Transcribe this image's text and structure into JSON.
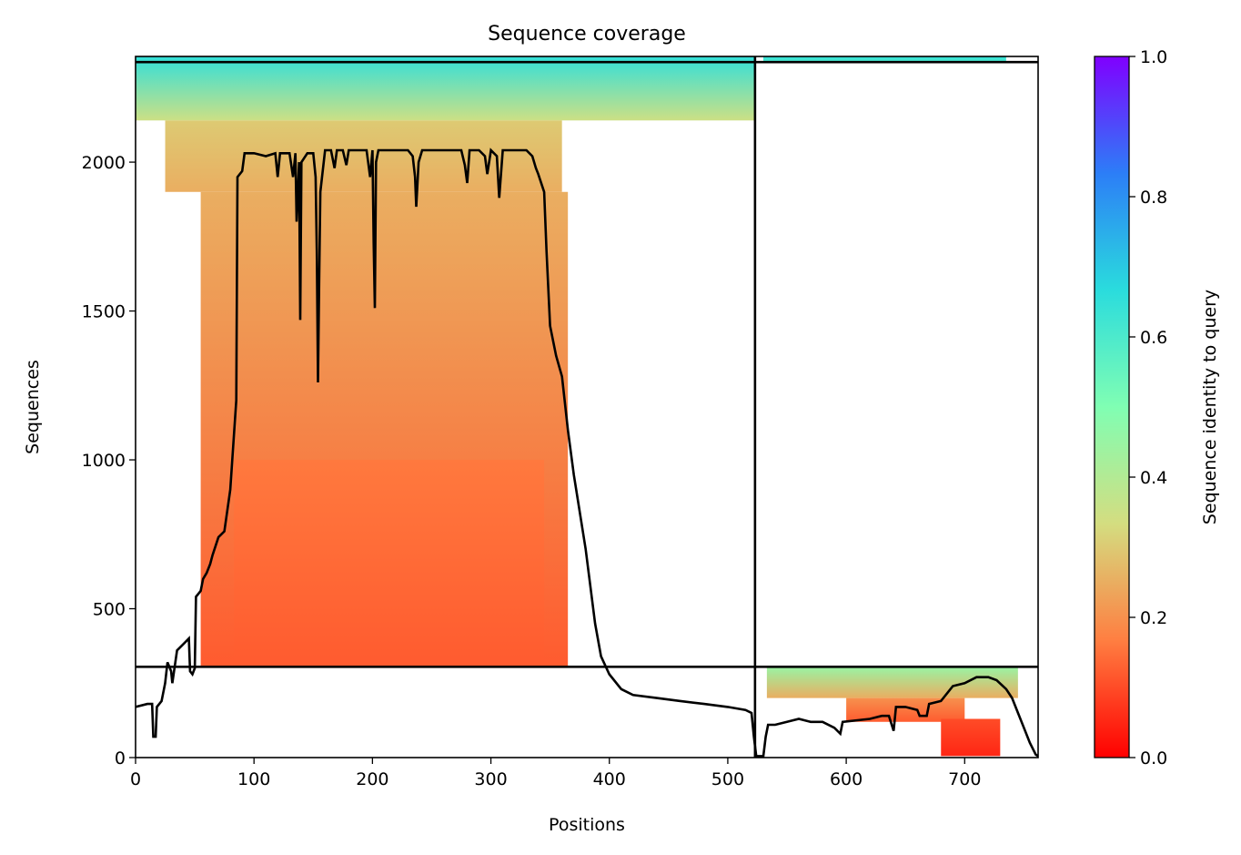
{
  "chart_data": {
    "type": "heatmap",
    "title": "Sequence coverage",
    "xlabel": "Positions",
    "ylabel": "Sequences",
    "xlim": [
      0,
      762
    ],
    "ylim": [
      0,
      2355
    ],
    "x_ticks": [
      0,
      100,
      200,
      300,
      400,
      500,
      600,
      700
    ],
    "y_ticks": [
      0,
      500,
      1000,
      1500,
      2000
    ],
    "grid": false,
    "colormap": "rainbow_r",
    "colorbar": {
      "label": "Sequence identity to query",
      "range": [
        0.0,
        1.0
      ],
      "ticks": [
        "0.0",
        "0.2",
        "0.4",
        "0.6",
        "0.8",
        "1.0"
      ],
      "colors": [
        "#ff0000",
        "#ff7e41",
        "#d4dd80",
        "#80feb3",
        "#2adcdd",
        "#2c7ef7",
        "#8000ff"
      ]
    },
    "chain_boundaries": {
      "vertical_at_position": 523,
      "horizontal_at_sequence": [
        305,
        2336
      ]
    },
    "coverage_blocks": [
      {
        "x0": 0,
        "x1": 523,
        "y0": 2140,
        "y1": 2355,
        "identity_bottom": 0.35,
        "identity_top": 0.65
      },
      {
        "x0": 25,
        "x1": 360,
        "y0": 1900,
        "y1": 2140,
        "identity_bottom": 0.25,
        "identity_top": 0.3
      },
      {
        "x0": 55,
        "x1": 365,
        "y0": 305,
        "y1": 1900,
        "identity_bottom": 0.12,
        "identity_top": 0.25
      },
      {
        "x0": 83,
        "x1": 345,
        "y0": 305,
        "y1": 1000,
        "identity_bottom": 0.12,
        "identity_top": 0.16
      },
      {
        "x0": 530,
        "x1": 735,
        "y0": 2336,
        "y1": 2355,
        "identity_bottom": 0.6,
        "identity_top": 0.65
      },
      {
        "x0": 533,
        "x1": 745,
        "y0": 200,
        "y1": 305,
        "identity_bottom": 0.25,
        "identity_top": 0.45
      },
      {
        "x0": 600,
        "x1": 700,
        "y0": 120,
        "y1": 200,
        "identity_bottom": 0.12,
        "identity_top": 0.2
      },
      {
        "x0": 680,
        "x1": 730,
        "y0": 5,
        "y1": 130,
        "identity_bottom": 0.05,
        "identity_top": 0.1
      }
    ],
    "series": [
      {
        "points": [
          [
            0,
            170
          ],
          [
            10,
            180
          ],
          [
            14,
            180
          ],
          [
            15,
            70
          ],
          [
            17,
            70
          ],
          [
            18,
            170
          ],
          [
            22,
            190
          ],
          [
            25,
            250
          ],
          [
            27,
            320
          ],
          [
            30,
            290
          ],
          [
            31,
            250
          ],
          [
            35,
            360
          ],
          [
            40,
            380
          ],
          [
            45,
            400
          ],
          [
            46,
            290
          ],
          [
            48,
            280
          ],
          [
            50,
            300
          ],
          [
            51,
            540
          ],
          [
            55,
            560
          ],
          [
            57,
            600
          ],
          [
            60,
            620
          ],
          [
            63,
            650
          ],
          [
            65,
            680
          ],
          [
            70,
            740
          ],
          [
            75,
            760
          ],
          [
            80,
            900
          ],
          [
            85,
            1200
          ],
          [
            86,
            1950
          ],
          [
            90,
            1970
          ],
          [
            92,
            2030
          ],
          [
            100,
            2030
          ],
          [
            110,
            2020
          ],
          [
            118,
            2030
          ],
          [
            120,
            1950
          ],
          [
            122,
            2030
          ],
          [
            130,
            2030
          ],
          [
            133,
            1950
          ],
          [
            135,
            2030
          ],
          [
            136,
            1800
          ],
          [
            138,
            2000
          ],
          [
            139,
            1470
          ],
          [
            140,
            2000
          ],
          [
            145,
            2030
          ],
          [
            150,
            2030
          ],
          [
            152,
            1950
          ],
          [
            153,
            1700
          ],
          [
            154,
            1260
          ],
          [
            155,
            1600
          ],
          [
            156,
            1900
          ],
          [
            160,
            2040
          ],
          [
            165,
            2040
          ],
          [
            168,
            1980
          ],
          [
            170,
            2040
          ],
          [
            175,
            2040
          ],
          [
            178,
            1990
          ],
          [
            180,
            2040
          ],
          [
            190,
            2040
          ],
          [
            195,
            2040
          ],
          [
            198,
            1950
          ],
          [
            200,
            2040
          ],
          [
            201,
            1730
          ],
          [
            202,
            1510
          ],
          [
            203,
            2000
          ],
          [
            205,
            2040
          ],
          [
            210,
            2040
          ],
          [
            220,
            2040
          ],
          [
            230,
            2040
          ],
          [
            234,
            2020
          ],
          [
            236,
            1950
          ],
          [
            237,
            1850
          ],
          [
            239,
            2000
          ],
          [
            242,
            2040
          ],
          [
            260,
            2040
          ],
          [
            275,
            2040
          ],
          [
            278,
            1990
          ],
          [
            280,
            1930
          ],
          [
            282,
            2040
          ],
          [
            290,
            2040
          ],
          [
            295,
            2020
          ],
          [
            297,
            1960
          ],
          [
            300,
            2040
          ],
          [
            305,
            2020
          ],
          [
            307,
            1880
          ],
          [
            310,
            2040
          ],
          [
            330,
            2040
          ],
          [
            335,
            2020
          ],
          [
            338,
            1980
          ],
          [
            340,
            1960
          ],
          [
            345,
            1900
          ],
          [
            347,
            1700
          ],
          [
            350,
            1450
          ],
          [
            355,
            1350
          ],
          [
            360,
            1280
          ],
          [
            365,
            1100
          ],
          [
            370,
            950
          ],
          [
            380,
            700
          ],
          [
            388,
            450
          ],
          [
            393,
            340
          ],
          [
            400,
            280
          ],
          [
            410,
            230
          ],
          [
            420,
            210
          ],
          [
            440,
            200
          ],
          [
            460,
            190
          ],
          [
            480,
            180
          ],
          [
            500,
            170
          ],
          [
            515,
            160
          ],
          [
            520,
            150
          ],
          [
            522,
            70
          ],
          [
            524,
            5
          ],
          [
            530,
            5
          ],
          [
            532,
            70
          ],
          [
            534,
            110
          ],
          [
            540,
            110
          ],
          [
            550,
            120
          ],
          [
            560,
            130
          ],
          [
            570,
            120
          ],
          [
            580,
            120
          ],
          [
            590,
            100
          ],
          [
            595,
            80
          ],
          [
            597,
            120
          ],
          [
            620,
            130
          ],
          [
            630,
            140
          ],
          [
            636,
            140
          ],
          [
            640,
            90
          ],
          [
            642,
            170
          ],
          [
            650,
            170
          ],
          [
            660,
            160
          ],
          [
            662,
            140
          ],
          [
            668,
            140
          ],
          [
            670,
            180
          ],
          [
            680,
            190
          ],
          [
            690,
            240
          ],
          [
            700,
            250
          ],
          [
            710,
            270
          ],
          [
            720,
            270
          ],
          [
            727,
            260
          ],
          [
            735,
            230
          ],
          [
            740,
            200
          ],
          [
            745,
            150
          ],
          [
            750,
            100
          ],
          [
            755,
            50
          ],
          [
            760,
            10
          ],
          [
            762,
            5
          ]
        ]
      }
    ]
  }
}
